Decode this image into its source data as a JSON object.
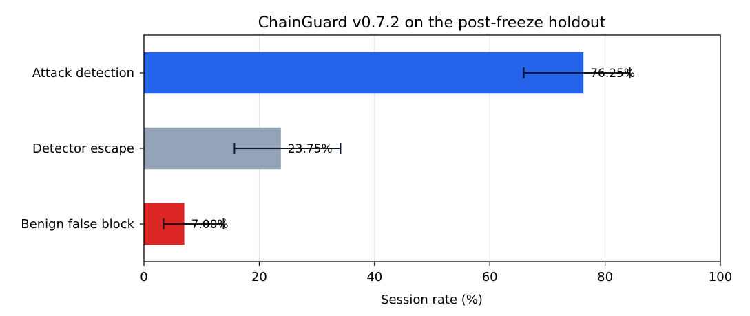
{
  "chart_data": {
    "type": "bar",
    "orientation": "horizontal",
    "title": "ChainGuard v0.7.2 on the post-freeze holdout",
    "xlabel": "Session rate (%)",
    "ylabel": "",
    "xlim": [
      0,
      100
    ],
    "xticks": [
      "0",
      "20",
      "40",
      "60",
      "80",
      "100"
    ],
    "grid": "vertical",
    "categories": [
      "Attack detection",
      "Detector escape",
      "Benign false block"
    ],
    "values": [
      76.25,
      23.75,
      7.0
    ],
    "error_low": [
      65.9,
      15.7,
      3.4
    ],
    "error_high": [
      84.3,
      34.1,
      13.8
    ],
    "data_labels": [
      "76.25%",
      "23.75%",
      "7.00%"
    ],
    "colors": [
      "#2563eb",
      "#94a3b8",
      "#dc2626"
    ]
  }
}
